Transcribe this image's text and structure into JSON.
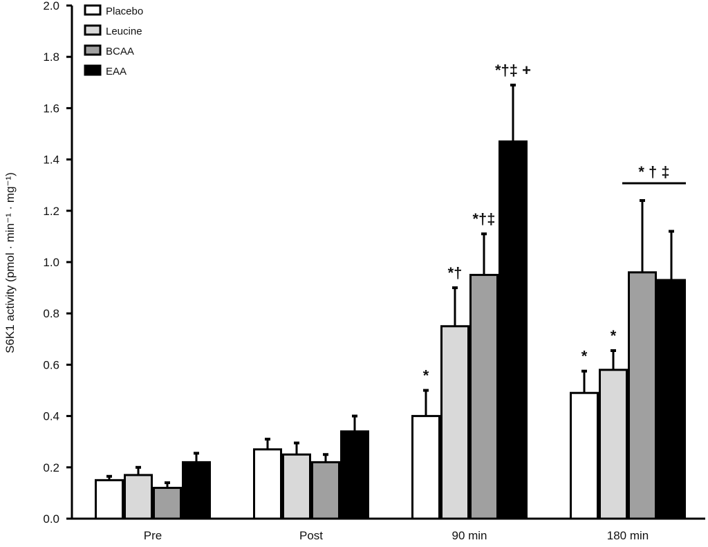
{
  "chart_data": {
    "type": "bar",
    "title": "",
    "xlabel": "",
    "ylabel": "S6K1 activity (pmol · min⁻¹ · mg⁻¹)",
    "ylim": [
      0,
      2.0
    ],
    "yticks": [
      "0.0",
      "0.2",
      "0.4",
      "0.6",
      "0.8",
      "1.0",
      "1.2",
      "1.4",
      "1.6",
      "1.8",
      "2.0"
    ],
    "categories": [
      "Pre",
      "Post",
      "90 min",
      "180 min"
    ],
    "legend_position": "top-left",
    "series": [
      {
        "name": "Placebo",
        "color": "#ffffff",
        "values": [
          0.15,
          0.27,
          0.4,
          0.49
        ],
        "errors": [
          0.015,
          0.04,
          0.1,
          0.085
        ]
      },
      {
        "name": "Leucine",
        "color": "#d9d9d9",
        "values": [
          0.17,
          0.25,
          0.75,
          0.58
        ],
        "errors": [
          0.03,
          0.045,
          0.15,
          0.075
        ]
      },
      {
        "name": "BCAA",
        "color": "#a0a0a0",
        "values": [
          0.12,
          0.22,
          0.95,
          0.96
        ],
        "errors": [
          0.02,
          0.03,
          0.16,
          0.28
        ]
      },
      {
        "name": "EAA",
        "color": "#000000",
        "values": [
          0.22,
          0.34,
          1.47,
          0.93
        ],
        "errors": [
          0.035,
          0.06,
          0.22,
          0.19
        ]
      }
    ],
    "annotations": [
      {
        "category": 2,
        "series": 0,
        "text": "*"
      },
      {
        "category": 2,
        "series": 1,
        "text": "*†"
      },
      {
        "category": 2,
        "series": 2,
        "text": "*†‡"
      },
      {
        "category": 2,
        "series": 3,
        "text": "*†‡ +"
      },
      {
        "category": 3,
        "series": 0,
        "text": "*"
      },
      {
        "category": 3,
        "series": 1,
        "text": "*"
      }
    ],
    "bracket_annotation": {
      "category": 3,
      "from_series": 2,
      "to_series": 3,
      "text": "*  †  ‡"
    }
  }
}
